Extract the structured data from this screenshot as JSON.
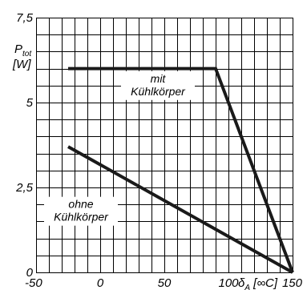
{
  "chart_data": {
    "type": "line",
    "title": "",
    "ylabel": "P_tot [W]",
    "ylabel_main": "P",
    "ylabel_sub": "tot",
    "ylabel_unit": "[W]",
    "xlabel": "δA [∞C]",
    "xlabel_main": "δ",
    "xlabel_sub": "A",
    "xlabel_unit": "[∞C]",
    "xlim": [
      -50,
      150
    ],
    "ylim": [
      0,
      7.5
    ],
    "x_ticks": [
      "-50",
      "0",
      "50",
      "100",
      "150"
    ],
    "y_ticks": [
      "0",
      "2,5",
      "5",
      "7,5"
    ],
    "x_tick_values": [
      -50,
      0,
      50,
      100,
      150
    ],
    "y_tick_values": [
      0,
      2.5,
      5,
      7.5
    ],
    "x_grid_step": 10,
    "y_grid_step": 0.5,
    "grid": true,
    "series": [
      {
        "label_lines": [
          "mit",
          "Kühlkörper"
        ],
        "color": "#1a1a1a",
        "x": [
          -25,
          90,
          150
        ],
        "y": [
          6,
          6,
          0
        ],
        "label_anchor": {
          "x": 45,
          "y": 5.5
        }
      },
      {
        "label_lines": [
          "ohne",
          "Kühlkörper"
        ],
        "color": "#1a1a1a",
        "x": [
          -25,
          150
        ],
        "y": [
          3.7,
          0
        ],
        "label_anchor": {
          "x": -15,
          "y": 1.8
        }
      }
    ]
  }
}
